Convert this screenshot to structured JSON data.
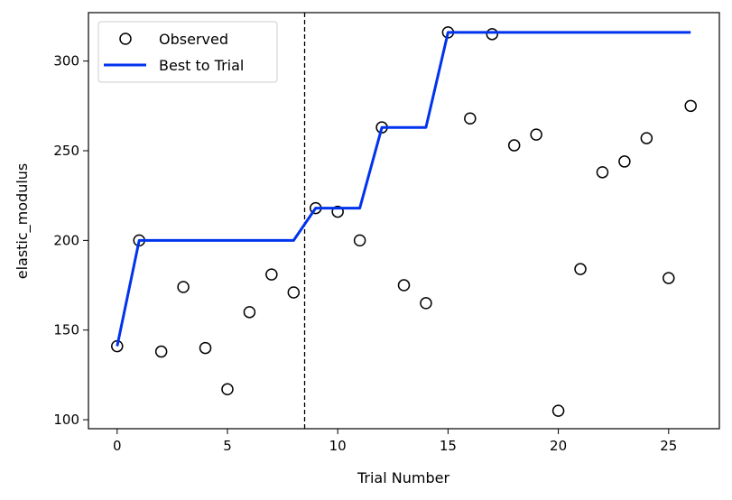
{
  "chart_data": {
    "type": "scatter",
    "xlabel": "Trial Number",
    "ylabel": "elastic_modulus",
    "xlim": [
      -1.3,
      27.3
    ],
    "ylim": [
      95,
      327
    ],
    "x_ticks": [
      0,
      5,
      10,
      15,
      20,
      25
    ],
    "y_ticks": [
      100,
      150,
      200,
      250,
      300
    ],
    "grid": false,
    "legend_position": "top-left",
    "reference_line": {
      "x": 8.5,
      "style": "dashed",
      "color": "#000000"
    },
    "series": [
      {
        "name": "Observed",
        "kind": "scatter",
        "marker": "open-circle",
        "color": "#000000",
        "x": [
          0,
          1,
          2,
          3,
          4,
          5,
          6,
          7,
          8,
          9,
          10,
          11,
          12,
          13,
          14,
          15,
          16,
          17,
          18,
          19,
          20,
          21,
          22,
          23,
          24,
          25,
          26
        ],
        "y": [
          141,
          200,
          138,
          174,
          140,
          117,
          160,
          181,
          171,
          218,
          216,
          200,
          263,
          175,
          165,
          316,
          268,
          315,
          253,
          259,
          105,
          184,
          238,
          244,
          257,
          179,
          275
        ]
      },
      {
        "name": "Best to Trial",
        "kind": "line",
        "color": "#0033ee",
        "x": [
          0,
          1,
          2,
          3,
          4,
          5,
          6,
          7,
          8,
          9,
          10,
          11,
          12,
          13,
          14,
          15,
          16,
          17,
          18,
          19,
          20,
          21,
          22,
          23,
          24,
          25,
          26
        ],
        "y": [
          141,
          200,
          200,
          200,
          200,
          200,
          200,
          200,
          200,
          218,
          218,
          218,
          263,
          263,
          263,
          316,
          316,
          316,
          316,
          316,
          316,
          316,
          316,
          316,
          316,
          316,
          316
        ]
      }
    ]
  }
}
